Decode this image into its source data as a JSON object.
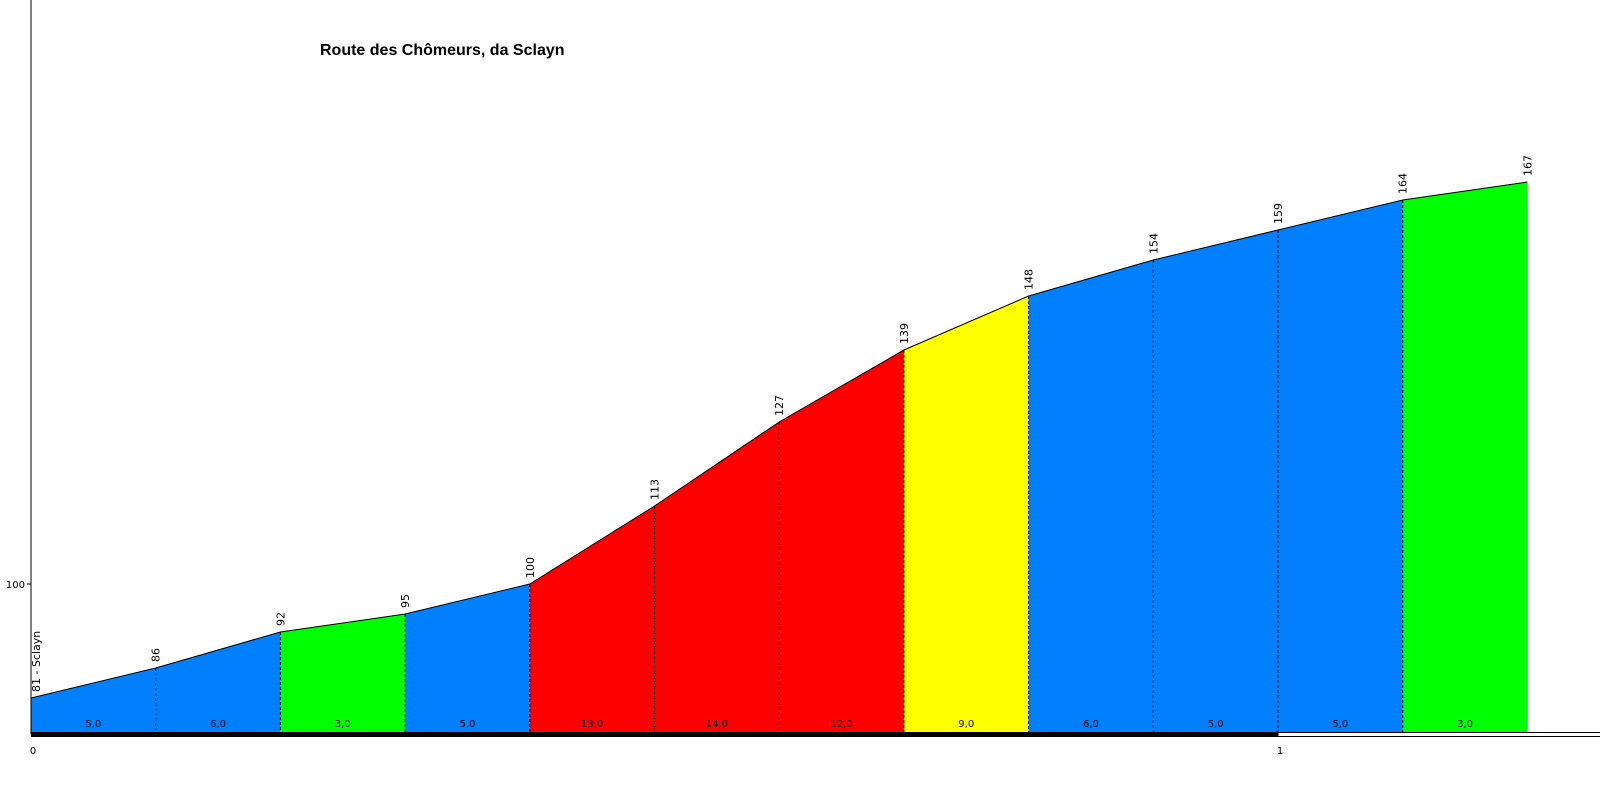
{
  "chart_data": {
    "type": "area",
    "title": "Route des Chômeurs, da Sclayn",
    "start_label": "Sclayn",
    "x_unit": "km",
    "xlim": [
      0,
      1.26
    ],
    "y_tick_values": [
      100
    ],
    "x_tick_values": [
      0,
      1
    ],
    "x_tick_labels": [
      "0",
      "1"
    ],
    "y_tick_labels": [
      "100"
    ],
    "distance_km": [
      0,
      0.1,
      0.2,
      0.3,
      0.4,
      0.5,
      0.6,
      0.7,
      0.8,
      0.9,
      1.0,
      1.1,
      1.2
    ],
    "elevation_m": [
      81,
      86,
      92,
      95,
      100,
      113,
      127,
      139,
      148,
      154,
      159,
      164,
      167
    ],
    "elevation_labels": [
      "81 - Sclayn",
      "86",
      "92",
      "95",
      "100",
      "113",
      "127",
      "139",
      "148",
      "154",
      "159",
      "164",
      "167"
    ],
    "gradients": [
      "5,0",
      "6,0",
      "3,0",
      "5,0",
      "13,0",
      "14,0",
      "12,0",
      "9,0",
      "6,0",
      "5,0",
      "5,0",
      "3,0"
    ],
    "gradient_colors": {
      "0-3": "#00ff00",
      "4-6": "#0080ff",
      "7-9": "#ffff00",
      "10-14": "#ff0000"
    }
  }
}
